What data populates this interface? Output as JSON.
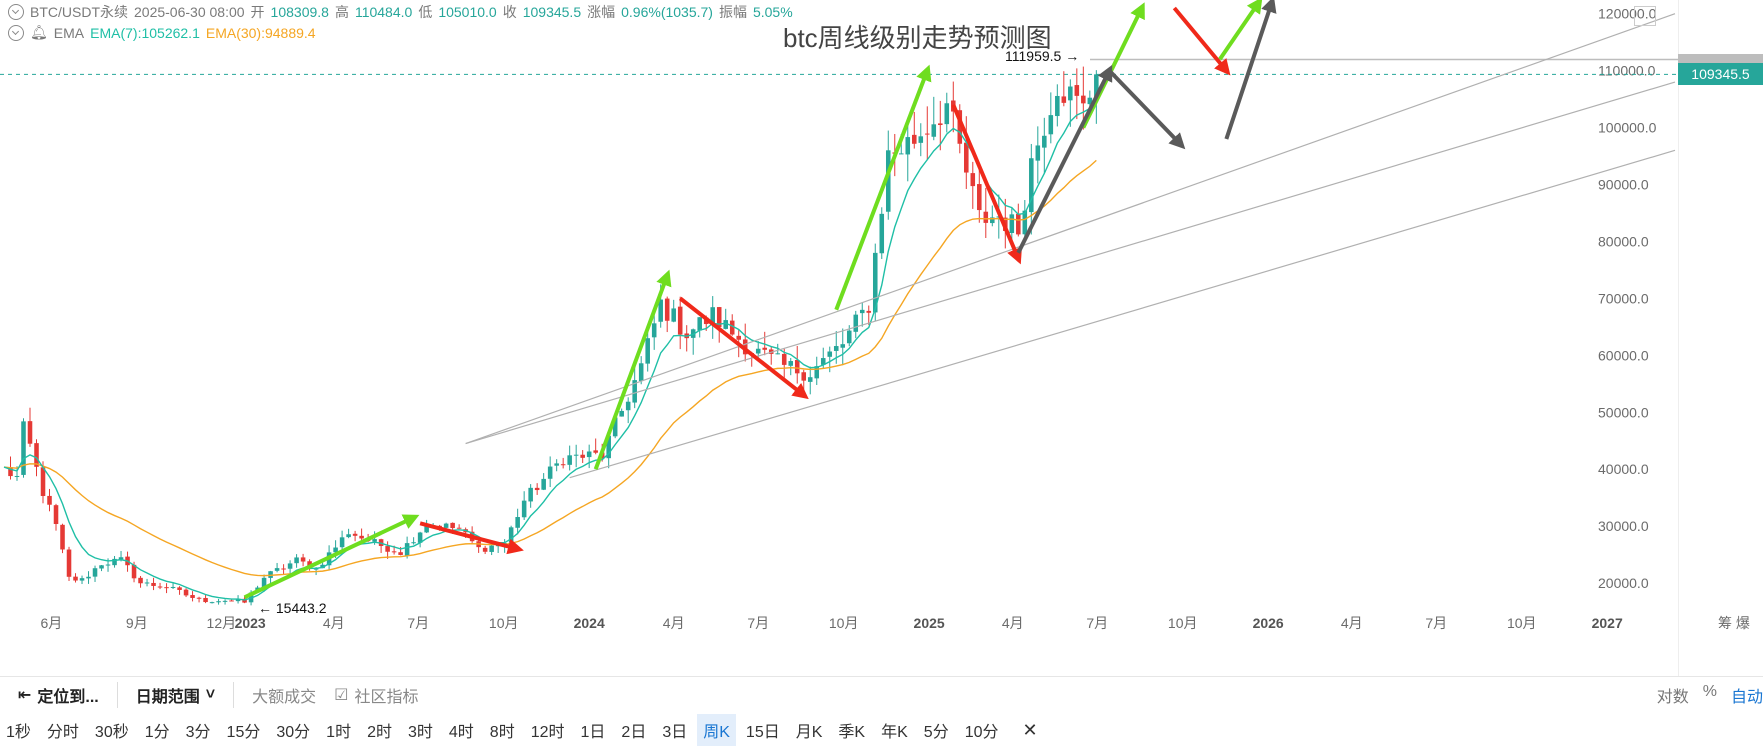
{
  "header": {
    "symbol": "BTC/USDT永续",
    "datetime": "2025-06-30 08:00",
    "open_label": "开",
    "open": "108309.8",
    "high_label": "高",
    "high": "110484.0",
    "low_label": "低",
    "low": "105010.0",
    "close_label": "收",
    "close": "109345.5",
    "change_label": "涨幅",
    "change": "0.96%(1035.7)",
    "amp_label": "振幅",
    "amp": "5.05%"
  },
  "ema_legend": {
    "name": "EMA",
    "ema7": "EMA(7):105262.1",
    "ema30": "EMA(30):94889.4"
  },
  "chart_data": {
    "type": "candlestick",
    "title": "btc周线级别走势预测图",
    "interval": "周K",
    "y_ticks": [
      20000,
      30000,
      40000,
      50000,
      60000,
      70000,
      80000,
      90000,
      100000,
      110000,
      120000
    ],
    "y_tick_labels": [
      "20000.0",
      "30000.0",
      "40000.0",
      "50000.0",
      "60000.0",
      "70000.0",
      "80000.0",
      "90000.0",
      "100000.0",
      "110000.0",
      "120000.0"
    ],
    "ylim": [
      10000,
      121000
    ],
    "x_ticks": [
      {
        "label": "6月",
        "date": "2022-06-01",
        "bold": false
      },
      {
        "label": "9月",
        "date": "2022-09-01",
        "bold": false
      },
      {
        "label": "12月",
        "date": "2022-12-01",
        "bold": false
      },
      {
        "label": "2023",
        "date": "2023-01-01",
        "bold": true
      },
      {
        "label": "4月",
        "date": "2023-04-01",
        "bold": false
      },
      {
        "label": "7月",
        "date": "2023-07-01",
        "bold": false
      },
      {
        "label": "10月",
        "date": "2023-10-01",
        "bold": false
      },
      {
        "label": "2024",
        "date": "2024-01-01",
        "bold": true
      },
      {
        "label": "4月",
        "date": "2024-04-01",
        "bold": false
      },
      {
        "label": "7月",
        "date": "2024-07-01",
        "bold": false
      },
      {
        "label": "10月",
        "date": "2024-10-01",
        "bold": false
      },
      {
        "label": "2025",
        "date": "2025-01-01",
        "bold": true
      },
      {
        "label": "4月",
        "date": "2025-04-01",
        "bold": false
      },
      {
        "label": "7月",
        "date": "2025-07-01",
        "bold": false
      },
      {
        "label": "10月",
        "date": "2025-10-01",
        "bold": false
      },
      {
        "label": "2026",
        "date": "2026-01-01",
        "bold": true
      },
      {
        "label": "4月",
        "date": "2026-04-01",
        "bold": false
      },
      {
        "label": "7月",
        "date": "2026-07-01",
        "bold": false
      },
      {
        "label": "10月",
        "date": "2026-10-01",
        "bold": false
      },
      {
        "label": "2027",
        "date": "2027-01-01",
        "bold": true
      }
    ],
    "price_path": [
      [
        "2022-04-11",
        40000
      ],
      [
        "2022-04-25",
        38500
      ],
      [
        "2022-05-02",
        47000
      ],
      [
        "2022-05-09",
        44000
      ],
      [
        "2022-05-23",
        36000
      ],
      [
        "2022-06-06",
        30000
      ],
      [
        "2022-06-20",
        20800
      ],
      [
        "2022-07-04",
        20500
      ],
      [
        "2022-07-25",
        23500
      ],
      [
        "2022-08-15",
        24000
      ],
      [
        "2022-09-05",
        20000
      ],
      [
        "2022-10-03",
        19300
      ],
      [
        "2022-11-07",
        17000
      ],
      [
        "2022-12-05",
        17000
      ],
      [
        "2022-12-26",
        16600
      ],
      [
        "2023-01-16",
        21000
      ],
      [
        "2023-02-20",
        24000
      ],
      [
        "2023-03-13",
        22500
      ],
      [
        "2023-04-17",
        29000
      ],
      [
        "2023-05-15",
        27000
      ],
      [
        "2023-06-12",
        25500
      ],
      [
        "2023-07-10",
        30500
      ],
      [
        "2023-08-14",
        29500
      ],
      [
        "2023-09-04",
        26000
      ],
      [
        "2023-10-02",
        27000
      ],
      [
        "2023-10-23",
        34500
      ],
      [
        "2023-12-04",
        42000
      ],
      [
        "2024-01-15",
        42500
      ],
      [
        "2024-02-26",
        58000
      ],
      [
        "2024-03-18",
        69000
      ],
      [
        "2024-04-15",
        64000
      ],
      [
        "2024-05-13",
        67000
      ],
      [
        "2024-06-24",
        61000
      ],
      [
        "2024-07-29",
        58000
      ],
      [
        "2024-08-26",
        57000
      ],
      [
        "2024-09-30",
        62000
      ],
      [
        "2024-10-28",
        69000
      ],
      [
        "2024-11-18",
        95000
      ],
      [
        "2024-12-16",
        98000
      ],
      [
        "2025-01-20",
        104000
      ],
      [
        "2025-02-24",
        84000
      ],
      [
        "2025-03-17",
        84500
      ],
      [
        "2025-04-07",
        82000
      ],
      [
        "2025-04-21",
        94000
      ],
      [
        "2025-05-19",
        108000
      ],
      [
        "2025-06-02",
        105500
      ],
      [
        "2025-06-16",
        103000
      ],
      [
        "2025-06-30",
        109345.5
      ]
    ],
    "series": [
      {
        "name": "EMA(7)",
        "color": "#1fbfa6",
        "value": 105262.1
      },
      {
        "name": "EMA(30)",
        "color": "#f5a623",
        "value": 94889.4
      }
    ],
    "annotations": {
      "high_label": "111959.5",
      "low_label": "15443.2",
      "last_price": "109345.5",
      "high_value": 111959.5,
      "low_value": 15443.2,
      "last_value": 109345.5
    },
    "colors": {
      "up": "#26a69a",
      "down": "#e53935",
      "green_arrow": "#6fdd1f",
      "red_arrow": "#f0291a",
      "gray_arrow": "#5a5a5a"
    },
    "arrows": [
      {
        "color": "green",
        "from": [
          "2022-12-26",
          17500
        ],
        "to": [
          "2023-06-26",
          31500
        ]
      },
      {
        "color": "red",
        "from": [
          "2023-07-03",
          30500
        ],
        "to": [
          "2023-10-16",
          26000
        ]
      },
      {
        "color": "green",
        "from": [
          "2024-01-08",
          40000
        ],
        "to": [
          "2024-03-25",
          74000
        ]
      },
      {
        "color": "red",
        "from": [
          "2024-04-08",
          70000
        ],
        "to": [
          "2024-08-19",
          53000
        ]
      },
      {
        "color": "green",
        "from": [
          "2024-09-23",
          68000
        ],
        "to": [
          "2024-12-30",
          110000
        ]
      },
      {
        "color": "red",
        "from": [
          "2025-01-27",
          104000
        ],
        "to": [
          "2025-04-07",
          77000
        ]
      },
      {
        "color": "green",
        "from": [
          "2025-06-16",
          100000
        ],
        "to": [
          "2025-08-18",
          121000
        ]
      },
      {
        "color": "gray",
        "from": [
          "2025-04-07",
          78000
        ],
        "to": [
          "2025-07-14",
          110000
        ]
      },
      {
        "color": "gray",
        "from": [
          "2025-07-14",
          110000
        ],
        "to": [
          "2025-09-29",
          97000
        ]
      },
      {
        "color": "red",
        "from": [
          "2025-09-22",
          121000
        ],
        "to": [
          "2025-11-17",
          110000
        ]
      },
      {
        "color": "gray",
        "from": [
          "2025-11-17",
          98000
        ],
        "to": [
          "2026-01-05",
          122000
        ]
      },
      {
        "color": "green",
        "from": [
          "2025-11-10",
          112000
        ],
        "to": [
          "2025-12-22",
          122000
        ]
      }
    ],
    "trendlines": [
      {
        "from": [
          "2023-08-21",
          44500
        ],
        "to": [
          "2027-03-15",
          120000
        ]
      },
      {
        "from": [
          "2023-08-21",
          44500
        ],
        "to": [
          "2027-03-15",
          108000
        ]
      },
      {
        "from": [
          "2023-12-11",
          38500
        ],
        "to": [
          "2027-03-15",
          96000
        ]
      }
    ],
    "grid": false,
    "legend_position": "top-left",
    "dashed_price_line": true
  },
  "toolbar": {
    "locate_label": "定位到...",
    "range_label": "日期范围",
    "big_trade_label": "大额成交",
    "community_label": "社区指标",
    "log_label": "对数",
    "percent_label": "%",
    "auto_label": "自动"
  },
  "intervals": [
    "1秒",
    "分时",
    "30秒",
    "1分",
    "3分",
    "15分",
    "30分",
    "1时",
    "2时",
    "3时",
    "4时",
    "8时",
    "12时",
    "1日",
    "2日",
    "3日",
    "周K",
    "15日",
    "月K",
    "季K",
    "年K",
    "5分",
    "10分"
  ],
  "selected_interval": "周K",
  "close_icon": "✕",
  "axis_corner": "筹 爆"
}
